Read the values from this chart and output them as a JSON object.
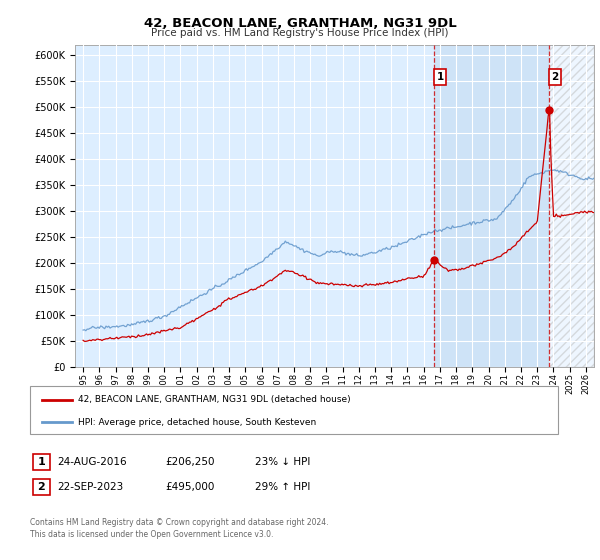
{
  "title": "42, BEACON LANE, GRANTHAM, NG31 9DL",
  "subtitle": "Price paid vs. HM Land Registry's House Price Index (HPI)",
  "ylabel_ticks": [
    "£0",
    "£50K",
    "£100K",
    "£150K",
    "£200K",
    "£250K",
    "£300K",
    "£350K",
    "£400K",
    "£450K",
    "£500K",
    "£550K",
    "£600K"
  ],
  "ytick_values": [
    0,
    50000,
    100000,
    150000,
    200000,
    250000,
    300000,
    350000,
    400000,
    450000,
    500000,
    550000,
    600000
  ],
  "ylim": [
    0,
    620000
  ],
  "xlim_start": 1994.5,
  "xlim_end": 2026.5,
  "xtick_years": [
    1995,
    1996,
    1997,
    1998,
    1999,
    2000,
    2001,
    2002,
    2003,
    2004,
    2005,
    2006,
    2007,
    2008,
    2009,
    2010,
    2011,
    2012,
    2013,
    2014,
    2015,
    2016,
    2017,
    2018,
    2019,
    2020,
    2021,
    2022,
    2023,
    2024,
    2025,
    2026
  ],
  "hpi_line_color": "#6699cc",
  "price_line_color": "#cc0000",
  "marker_color": "#cc0000",
  "point1_x": 2016.63,
  "point1_y": 206250,
  "point2_x": 2023.72,
  "point2_y": 495000,
  "vline1_x": 2016.63,
  "vline2_x": 2023.72,
  "legend_label1": "42, BEACON LANE, GRANTHAM, NG31 9DL (detached house)",
  "legend_label2": "HPI: Average price, detached house, South Kesteven",
  "table_row1": [
    "1",
    "24-AUG-2016",
    "£206,250",
    "23% ↓ HPI"
  ],
  "table_row2": [
    "2",
    "22-SEP-2023",
    "£495,000",
    "29% ↑ HPI"
  ],
  "footer": "Contains HM Land Registry data © Crown copyright and database right 2024.\nThis data is licensed under the Open Government Licence v3.0.",
  "plot_bg_color": "#ddeeff",
  "fig_bg_color": "#ffffff",
  "grid_color": "#ffffff",
  "shade_between_color": "#cce0f5",
  "hatch_color": "#cccccc"
}
